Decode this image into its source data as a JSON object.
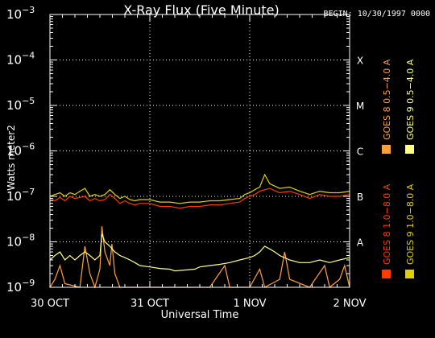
{
  "title": "X-Ray Flux (Five Minute)",
  "begin_label": "BEGIN: 10/30/1997 0000",
  "chart_data": {
    "type": "line",
    "title": "X-Ray Flux (Five Minute)",
    "ylabel": "Watts meter2",
    "xlabel": "Universal Time",
    "y_scale": "log",
    "ylim": [
      1e-09,
      0.001
    ],
    "y_ticks": [
      {
        "value": 1e-09,
        "base": "10",
        "exp": "−9"
      },
      {
        "value": 1e-08,
        "base": "10",
        "exp": "−8"
      },
      {
        "value": 1e-07,
        "base": "10",
        "exp": "−7"
      },
      {
        "value": 1e-06,
        "base": "10",
        "exp": "−6"
      },
      {
        "value": 1e-05,
        "base": "10",
        "exp": "−5"
      },
      {
        "value": 0.0001,
        "base": "10",
        "exp": "−4"
      },
      {
        "value": 0.001,
        "base": "10",
        "exp": "−3"
      }
    ],
    "flare_classes": [
      {
        "label": "X",
        "value": 0.0001
      },
      {
        "label": "M",
        "value": 1e-05
      },
      {
        "label": "C",
        "value": 1e-06
      },
      {
        "label": "B",
        "value": 1e-07
      },
      {
        "label": "A",
        "value": 1e-08
      }
    ],
    "x_ticks": [
      {
        "label": "30 OCT",
        "day": 0
      },
      {
        "label": "31 OCT",
        "day": 1
      },
      {
        "label": "1 NOV",
        "day": 2
      },
      {
        "label": "2 NOV",
        "day": 3
      }
    ],
    "xlim": [
      0,
      3
    ],
    "grid": "dotted at class levels and day boundaries",
    "legend_position": "right, rotated",
    "series": [
      {
        "name": "GOES 8 1.0−8.0 A",
        "color": "#ff3c00",
        "points": [
          [
            0,
            9e-08
          ],
          [
            0.05,
            8e-08
          ],
          [
            0.1,
            9.5e-08
          ],
          [
            0.15,
            8e-08
          ],
          [
            0.2,
            1e-07
          ],
          [
            0.25,
            9e-08
          ],
          [
            0.3,
            9.5e-08
          ],
          [
            0.35,
            1e-07
          ],
          [
            0.4,
            8e-08
          ],
          [
            0.45,
            9e-08
          ],
          [
            0.5,
            8e-08
          ],
          [
            0.55,
            8.5e-08
          ],
          [
            0.6,
            1.1e-07
          ],
          [
            0.65,
            9e-08
          ],
          [
            0.7,
            7e-08
          ],
          [
            0.75,
            8e-08
          ],
          [
            0.8,
            7e-08
          ],
          [
            0.85,
            6.5e-08
          ],
          [
            0.9,
            7e-08
          ],
          [
            1.0,
            7e-08
          ],
          [
            1.1,
            6e-08
          ],
          [
            1.2,
            6e-08
          ],
          [
            1.3,
            5.5e-08
          ],
          [
            1.4,
            6e-08
          ],
          [
            1.5,
            6e-08
          ],
          [
            1.6,
            6.5e-08
          ],
          [
            1.7,
            6.5e-08
          ],
          [
            1.8,
            7e-08
          ],
          [
            1.9,
            7.5e-08
          ],
          [
            1.95,
            9e-08
          ],
          [
            2.0,
            1e-07
          ],
          [
            2.05,
            1.1e-07
          ],
          [
            2.1,
            1.3e-07
          ],
          [
            2.2,
            1.5e-07
          ],
          [
            2.3,
            1.2e-07
          ],
          [
            2.4,
            1.3e-07
          ],
          [
            2.5,
            1.1e-07
          ],
          [
            2.6,
            9e-08
          ],
          [
            2.7,
            1.1e-07
          ],
          [
            2.8,
            1e-07
          ],
          [
            2.9,
            1e-07
          ],
          [
            3.0,
            1.1e-07
          ]
        ]
      },
      {
        "name": "GOES 8 0.5−4.0 A",
        "color": "#ffa040",
        "points": [
          [
            0,
            1e-09
          ],
          [
            0.05,
            1.5e-09
          ],
          [
            0.1,
            3e-09
          ],
          [
            0.15,
            1.2e-09
          ],
          [
            0.3,
            1e-09
          ],
          [
            0.35,
            8e-09
          ],
          [
            0.4,
            2e-09
          ],
          [
            0.45,
            1e-09
          ],
          [
            0.5,
            2.5e-09
          ],
          [
            0.52,
            2.2e-08
          ],
          [
            0.55,
            6e-09
          ],
          [
            0.6,
            3e-09
          ],
          [
            0.62,
            9e-09
          ],
          [
            0.65,
            2e-09
          ],
          [
            0.7,
            1e-09
          ],
          [
            1.0,
            1e-09
          ],
          [
            1.2,
            1e-09
          ],
          [
            1.6,
            1e-09
          ],
          [
            1.75,
            3e-09
          ],
          [
            1.8,
            1e-09
          ],
          [
            2.0,
            1e-09
          ],
          [
            2.1,
            2.5e-09
          ],
          [
            2.15,
            1e-09
          ],
          [
            2.3,
            1.5e-09
          ],
          [
            2.35,
            6e-09
          ],
          [
            2.4,
            1.5e-09
          ],
          [
            2.6,
            1e-09
          ],
          [
            2.75,
            3e-09
          ],
          [
            2.8,
            1e-09
          ],
          [
            2.9,
            1.5e-09
          ],
          [
            2.95,
            3e-09
          ],
          [
            3.0,
            1e-09
          ]
        ]
      },
      {
        "name": "GOES 9 1.0−8.0 A",
        "color": "#e0d000",
        "points": [
          [
            0,
            1e-07
          ],
          [
            0.05,
            1.1e-07
          ],
          [
            0.1,
            1.2e-07
          ],
          [
            0.15,
            1e-07
          ],
          [
            0.2,
            1.2e-07
          ],
          [
            0.25,
            1.1e-07
          ],
          [
            0.3,
            1.3e-07
          ],
          [
            0.35,
            1.5e-07
          ],
          [
            0.4,
            1e-07
          ],
          [
            0.45,
            1.1e-07
          ],
          [
            0.5,
            1e-07
          ],
          [
            0.55,
            1.1e-07
          ],
          [
            0.6,
            1.4e-07
          ],
          [
            0.65,
            1.1e-07
          ],
          [
            0.7,
            9e-08
          ],
          [
            0.75,
            1e-07
          ],
          [
            0.8,
            8.5e-08
          ],
          [
            0.85,
            8e-08
          ],
          [
            0.9,
            8.5e-08
          ],
          [
            1.0,
            8.5e-08
          ],
          [
            1.1,
            7.5e-08
          ],
          [
            1.2,
            7.5e-08
          ],
          [
            1.3,
            7e-08
          ],
          [
            1.4,
            7.5e-08
          ],
          [
            1.5,
            7.5e-08
          ],
          [
            1.6,
            8e-08
          ],
          [
            1.7,
            8e-08
          ],
          [
            1.8,
            8.5e-08
          ],
          [
            1.9,
            9e-08
          ],
          [
            1.95,
            1.1e-07
          ],
          [
            2.0,
            1.2e-07
          ],
          [
            2.05,
            1.4e-07
          ],
          [
            2.1,
            1.6e-07
          ],
          [
            2.15,
            3e-07
          ],
          [
            2.2,
            1.9e-07
          ],
          [
            2.3,
            1.5e-07
          ],
          [
            2.4,
            1.6e-07
          ],
          [
            2.5,
            1.3e-07
          ],
          [
            2.6,
            1.1e-07
          ],
          [
            2.7,
            1.3e-07
          ],
          [
            2.8,
            1.2e-07
          ],
          [
            2.9,
            1.2e-07
          ],
          [
            3.0,
            1.3e-07
          ]
        ]
      },
      {
        "name": "GOES 9 0.5−4.0 A",
        "color": "#ffff80",
        "points": [
          [
            0,
            4e-09
          ],
          [
            0.05,
            5e-09
          ],
          [
            0.1,
            6e-09
          ],
          [
            0.15,
            4e-09
          ],
          [
            0.2,
            5e-09
          ],
          [
            0.25,
            4e-09
          ],
          [
            0.3,
            5e-09
          ],
          [
            0.35,
            6e-09
          ],
          [
            0.4,
            5e-09
          ],
          [
            0.45,
            4e-09
          ],
          [
            0.5,
            5e-09
          ],
          [
            0.52,
            1.5e-08
          ],
          [
            0.55,
            1e-08
          ],
          [
            0.6,
            8e-09
          ],
          [
            0.65,
            6e-09
          ],
          [
            0.7,
            5e-09
          ],
          [
            0.75,
            4.5e-09
          ],
          [
            0.8,
            4e-09
          ],
          [
            0.85,
            3.5e-09
          ],
          [
            0.9,
            3e-09
          ],
          [
            1.0,
            2.8e-09
          ],
          [
            1.1,
            2.6e-09
          ],
          [
            1.2,
            2.5e-09
          ],
          [
            1.25,
            2.3e-09
          ],
          [
            1.45,
            2.5e-09
          ],
          [
            1.5,
            2.8e-09
          ],
          [
            1.6,
            3e-09
          ],
          [
            1.7,
            3.2e-09
          ],
          [
            1.8,
            3.5e-09
          ],
          [
            1.9,
            4e-09
          ],
          [
            2.0,
            4.5e-09
          ],
          [
            2.05,
            5e-09
          ],
          [
            2.1,
            6e-09
          ],
          [
            2.15,
            8e-09
          ],
          [
            2.2,
            7e-09
          ],
          [
            2.25,
            6e-09
          ],
          [
            2.3,
            5e-09
          ],
          [
            2.4,
            4e-09
          ],
          [
            2.5,
            3.5e-09
          ],
          [
            2.6,
            3.5e-09
          ],
          [
            2.7,
            4e-09
          ],
          [
            2.8,
            3.5e-09
          ],
          [
            2.9,
            4e-09
          ],
          [
            3.0,
            4.5e-09
          ]
        ]
      }
    ]
  }
}
